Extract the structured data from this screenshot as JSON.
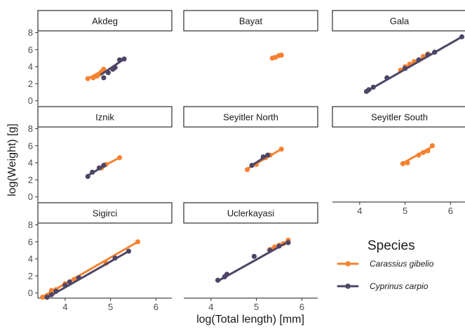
{
  "chart_data": {
    "type": "scatter",
    "xlabel": "log(Total length) [mm]",
    "ylabel": "log(Weight) [g]",
    "xlim": [
      3.4,
      6.35
    ],
    "ylim": [
      -0.6,
      8.2
    ],
    "x_ticks": [
      4,
      5,
      6
    ],
    "y_ticks": [
      0,
      2,
      4,
      6,
      8
    ],
    "grid": false,
    "legend": {
      "title": "Species",
      "position": "bottom-right",
      "entries": [
        {
          "name": "Carassius gibelio",
          "color": "#F58231"
        },
        {
          "name": "Cyprinus carpio",
          "color": "#4E4566"
        }
      ]
    },
    "panels": [
      {
        "name": "Akdeg",
        "series": [
          {
            "name": "Carassius gibelio",
            "points": [
              [
                4.5,
                2.6
              ],
              [
                4.62,
                2.7
              ],
              [
                4.7,
                2.9
              ],
              [
                4.75,
                3.1
              ],
              [
                4.8,
                3.4
              ],
              [
                4.85,
                3.7
              ]
            ],
            "fit": [
              [
                4.5,
                2.6
              ],
              [
                4.85,
                3.6
              ]
            ]
          },
          {
            "name": "Cyprinus carpio",
            "points": [
              [
                4.85,
                2.7
              ],
              [
                4.95,
                3.3
              ],
              [
                5.05,
                3.7
              ],
              [
                5.1,
                3.9
              ],
              [
                5.2,
                4.8
              ],
              [
                5.3,
                4.9
              ]
            ],
            "fit": [
              [
                4.8,
                3.1
              ],
              [
                5.3,
                4.9
              ]
            ]
          }
        ]
      },
      {
        "name": "Bayat",
        "series": [
          {
            "name": "Carassius gibelio",
            "points": [
              [
                5.35,
                5.0
              ],
              [
                5.42,
                5.1
              ],
              [
                5.5,
                5.3
              ],
              [
                5.55,
                5.35
              ]
            ],
            "fit": [
              [
                5.35,
                5.0
              ],
              [
                5.55,
                5.35
              ]
            ]
          }
        ]
      },
      {
        "name": "Gala",
        "series": [
          {
            "name": "Carassius gibelio",
            "points": [
              [
                4.9,
                3.6
              ],
              [
                5.0,
                4.0
              ],
              [
                5.1,
                4.3
              ],
              [
                5.2,
                4.6
              ],
              [
                5.4,
                5.2
              ],
              [
                5.5,
                5.5
              ]
            ],
            "fit": [
              [
                4.9,
                3.6
              ],
              [
                5.55,
                5.5
              ]
            ]
          },
          {
            "name": "Cyprinus carpio",
            "points": [
              [
                4.15,
                1.1
              ],
              [
                4.2,
                1.3
              ],
              [
                4.3,
                1.6
              ],
              [
                4.6,
                2.7
              ],
              [
                5.0,
                3.8
              ],
              [
                5.3,
                4.8
              ],
              [
                5.5,
                5.4
              ],
              [
                5.65,
                5.7
              ],
              [
                6.25,
                7.5
              ]
            ],
            "fit": [
              [
                4.15,
                1.1
              ],
              [
                6.25,
                7.5
              ]
            ]
          }
        ]
      },
      {
        "name": "Iznik",
        "series": [
          {
            "name": "Carassius gibelio",
            "points": [
              [
                4.8,
                3.4
              ],
              [
                4.9,
                3.8
              ],
              [
                5.2,
                4.6
              ]
            ],
            "fit": [
              [
                4.8,
                3.5
              ],
              [
                5.2,
                4.6
              ]
            ]
          },
          {
            "name": "Cyprinus carpio",
            "points": [
              [
                4.5,
                2.4
              ],
              [
                4.6,
                2.9
              ],
              [
                4.75,
                3.4
              ],
              [
                4.85,
                3.7
              ]
            ],
            "fit": [
              [
                4.5,
                2.5
              ],
              [
                4.85,
                3.6
              ]
            ]
          }
        ]
      },
      {
        "name": "Seyitler  North",
        "series": [
          {
            "name": "Carassius gibelio",
            "points": [
              [
                4.8,
                3.2
              ],
              [
                5.0,
                3.8
              ],
              [
                5.2,
                4.6
              ],
              [
                5.3,
                4.9
              ],
              [
                5.55,
                5.6
              ]
            ],
            "fit": [
              [
                4.8,
                3.3
              ],
              [
                5.55,
                5.6
              ]
            ]
          },
          {
            "name": "Cyprinus carpio",
            "points": [
              [
                4.9,
                3.7
              ],
              [
                5.15,
                4.7
              ],
              [
                5.25,
                4.9
              ]
            ],
            "fit": [
              [
                4.9,
                3.7
              ],
              [
                5.25,
                4.9
              ]
            ]
          }
        ]
      },
      {
        "name": "Seyitler  South",
        "series": [
          {
            "name": "Carassius gibelio",
            "points": [
              [
                4.95,
                3.9
              ],
              [
                5.05,
                4.0
              ],
              [
                5.3,
                4.9
              ],
              [
                5.4,
                5.2
              ],
              [
                5.5,
                5.4
              ],
              [
                5.6,
                6.0
              ]
            ],
            "fit": [
              [
                4.95,
                3.95
              ],
              [
                5.6,
                5.9
              ]
            ]
          }
        ]
      },
      {
        "name": "Sigirci",
        "series": [
          {
            "name": "Carassius gibelio",
            "points": [
              [
                3.5,
                -0.5
              ],
              [
                3.6,
                -0.3
              ],
              [
                3.7,
                0.3
              ],
              [
                3.8,
                0.4
              ],
              [
                4.0,
                1.1
              ],
              [
                4.2,
                1.6
              ],
              [
                4.9,
                3.5
              ],
              [
                5.6,
                6.0
              ]
            ],
            "fit": [
              [
                3.5,
                -0.45
              ],
              [
                5.6,
                6.0
              ]
            ]
          },
          {
            "name": "Cyprinus carpio",
            "points": [
              [
                3.6,
                -0.5
              ],
              [
                3.7,
                -0.2
              ],
              [
                3.8,
                0.2
              ],
              [
                4.0,
                0.9
              ],
              [
                4.1,
                1.3
              ],
              [
                4.3,
                1.8
              ],
              [
                5.1,
                4.1
              ],
              [
                5.4,
                4.9
              ]
            ],
            "fit": [
              [
                3.6,
                -0.55
              ],
              [
                5.4,
                4.9
              ]
            ]
          }
        ]
      },
      {
        "name": "Uclerkayasi",
        "series": [
          {
            "name": "Carassius gibelio",
            "points": [
              [
                5.3,
                5.1
              ],
              [
                5.4,
                5.4
              ],
              [
                5.5,
                5.6
              ],
              [
                5.6,
                5.8
              ],
              [
                5.7,
                6.2
              ]
            ],
            "fit": [
              [
                5.25,
                5.05
              ],
              [
                5.7,
                6.1
              ]
            ]
          },
          {
            "name": "Cyprinus carpio",
            "points": [
              [
                4.15,
                1.5
              ],
              [
                4.3,
                1.9
              ],
              [
                4.35,
                2.2
              ],
              [
                4.95,
                4.3
              ],
              [
                5.3,
                5.0
              ],
              [
                5.5,
                5.5
              ],
              [
                5.7,
                5.9
              ]
            ],
            "fit": [
              [
                4.15,
                1.4
              ],
              [
                5.7,
                6.0
              ]
            ]
          }
        ]
      }
    ]
  }
}
